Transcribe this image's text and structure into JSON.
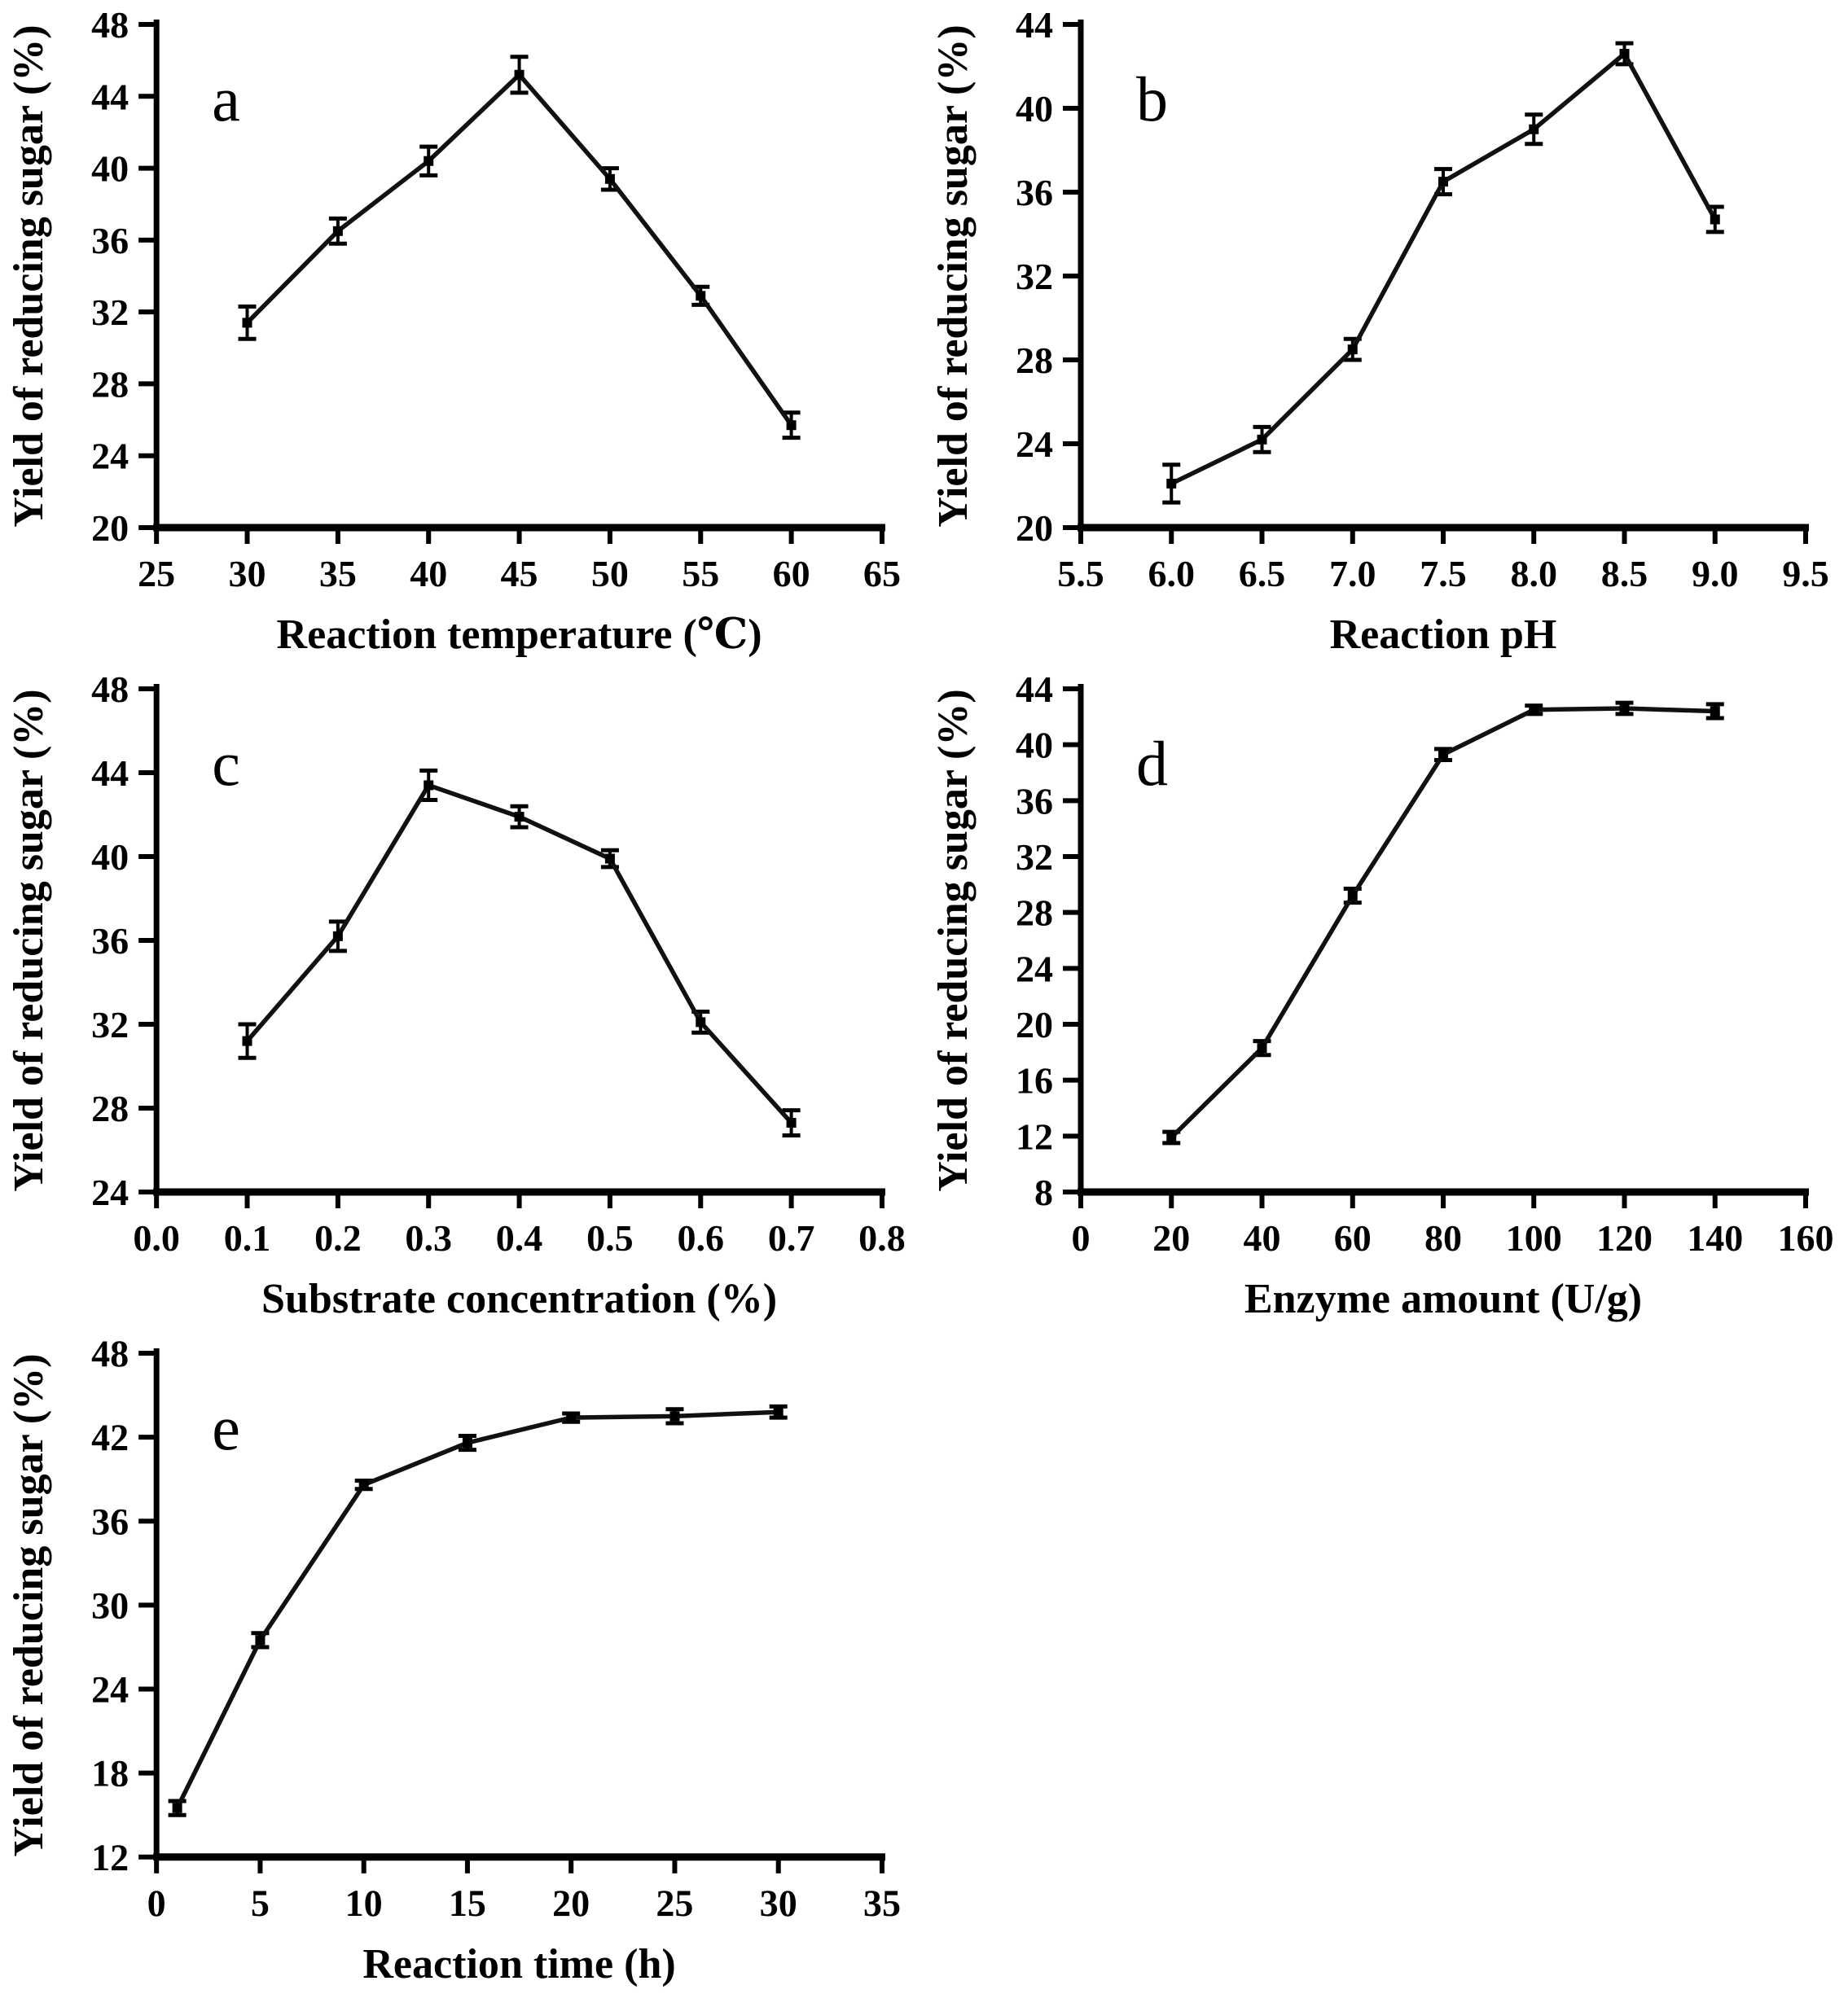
{
  "figure": {
    "background": "#ffffff",
    "ink_color": "#000000",
    "line_color": "#111111",
    "layout": "five line chart panels in a 2-column grid, panel e bottom-left, bottom-right cell empty"
  },
  "chart_data": [
    {
      "type": "line",
      "panel_letter": "a",
      "xlabel": "Reaction temperature (℃)",
      "ylabel": "Yield of reducing sugar (%)",
      "x": [
        30,
        35,
        40,
        45,
        50,
        55,
        60
      ],
      "y": [
        31.4,
        36.5,
        40.4,
        45.2,
        39.4,
        32.9,
        25.7
      ],
      "yerr": [
        0.9,
        0.7,
        0.8,
        1.0,
        0.6,
        0.5,
        0.7
      ],
      "xlim": [
        25,
        65
      ],
      "ylim": [
        20,
        48
      ],
      "xticks": [
        25,
        30,
        35,
        40,
        45,
        50,
        55,
        60,
        65
      ],
      "xtick_labels": [
        "25",
        "30",
        "35",
        "40",
        "45",
        "50",
        "55",
        "60",
        "65"
      ],
      "yticks": [
        20,
        24,
        28,
        32,
        36,
        40,
        44,
        48
      ],
      "ytick_labels": [
        "20",
        "24",
        "28",
        "32",
        "36",
        "40",
        "44",
        "48"
      ],
      "marker": "square",
      "error_bars": true,
      "grid": false,
      "legend": null
    },
    {
      "type": "line",
      "panel_letter": "b",
      "xlabel": "Reaction pH",
      "ylabel": "Yield of reducing sugar (%)",
      "x": [
        6.0,
        6.5,
        7.0,
        7.5,
        8.0,
        8.5,
        9.0
      ],
      "y": [
        22.1,
        24.2,
        28.5,
        36.5,
        39.0,
        42.6,
        34.7
      ],
      "yerr": [
        0.9,
        0.6,
        0.5,
        0.6,
        0.7,
        0.5,
        0.6
      ],
      "xlim": [
        5.5,
        9.5
      ],
      "ylim": [
        20,
        44
      ],
      "xticks": [
        5.5,
        6.0,
        6.5,
        7.0,
        7.5,
        8.0,
        8.5,
        9.0,
        9.5
      ],
      "xtick_labels": [
        "5.5",
        "6.0",
        "6.5",
        "7.0",
        "7.5",
        "8.0",
        "8.5",
        "9.0",
        "9.5"
      ],
      "yticks": [
        20,
        24,
        28,
        32,
        36,
        40,
        44
      ],
      "ytick_labels": [
        "20",
        "24",
        "28",
        "32",
        "36",
        "40",
        "44"
      ],
      "marker": "square",
      "error_bars": true,
      "grid": false,
      "legend": null
    },
    {
      "type": "line",
      "panel_letter": "c",
      "xlabel": "Substrate concentration (%)",
      "ylabel": "Yield of reducing sugar (%)",
      "x": [
        0.1,
        0.2,
        0.3,
        0.4,
        0.5,
        0.6,
        0.7
      ],
      "y": [
        31.2,
        36.2,
        43.4,
        41.9,
        39.9,
        32.1,
        27.3
      ],
      "yerr": [
        0.8,
        0.7,
        0.7,
        0.5,
        0.4,
        0.5,
        0.6
      ],
      "xlim": [
        0.0,
        0.8
      ],
      "ylim": [
        24,
        48
      ],
      "xticks": [
        0.0,
        0.1,
        0.2,
        0.3,
        0.4,
        0.5,
        0.6,
        0.7,
        0.8
      ],
      "xtick_labels": [
        "0.0",
        "0.1",
        "0.2",
        "0.3",
        "0.4",
        "0.5",
        "0.6",
        "0.7",
        "0.8"
      ],
      "yticks": [
        24,
        28,
        32,
        36,
        40,
        44,
        48
      ],
      "ytick_labels": [
        "24",
        "28",
        "32",
        "36",
        "40",
        "44",
        "48"
      ],
      "marker": "square",
      "error_bars": true,
      "grid": false,
      "legend": null
    },
    {
      "type": "line",
      "panel_letter": "d",
      "xlabel": "Enzyme amount (U/g)",
      "ylabel": "Yield of reducing sugar (%)",
      "x": [
        20,
        40,
        60,
        80,
        100,
        120,
        140
      ],
      "y": [
        11.9,
        18.3,
        29.2,
        39.3,
        42.5,
        42.6,
        42.4
      ],
      "yerr": [
        0.4,
        0.5,
        0.5,
        0.4,
        0.3,
        0.4,
        0.5
      ],
      "xlim": [
        0,
        160
      ],
      "ylim": [
        8,
        44
      ],
      "xticks": [
        0,
        20,
        40,
        60,
        80,
        100,
        120,
        140,
        160
      ],
      "xtick_labels": [
        "0",
        "20",
        "40",
        "60",
        "80",
        "100",
        "120",
        "140",
        "160"
      ],
      "yticks": [
        8,
        12,
        16,
        20,
        24,
        28,
        32,
        36,
        40,
        44
      ],
      "ytick_labels": [
        "8",
        "12",
        "16",
        "20",
        "24",
        "28",
        "32",
        "36",
        "40",
        "44"
      ],
      "marker": "square",
      "error_bars": true,
      "grid": false,
      "legend": null
    },
    {
      "type": "line",
      "panel_letter": "e",
      "xlabel": "Reaction time (h)",
      "ylabel": "Yield of reducing sugar (%)",
      "x": [
        1,
        5,
        10,
        15,
        20,
        25,
        30
      ],
      "y": [
        15.5,
        27.5,
        38.6,
        41.6,
        43.4,
        43.5,
        43.8
      ],
      "yerr": [
        0.5,
        0.5,
        0.3,
        0.5,
        0.3,
        0.5,
        0.4
      ],
      "xlim": [
        0,
        35
      ],
      "ylim": [
        12,
        48
      ],
      "xticks": [
        0,
        5,
        10,
        15,
        20,
        25,
        30,
        35
      ],
      "xtick_labels": [
        "0",
        "5",
        "10",
        "15",
        "20",
        "25",
        "30",
        "35"
      ],
      "yticks": [
        12,
        18,
        24,
        30,
        36,
        42,
        48
      ],
      "ytick_labels": [
        "12",
        "18",
        "24",
        "30",
        "36",
        "42",
        "48"
      ],
      "marker": "square",
      "error_bars": true,
      "grid": false,
      "legend": null
    }
  ]
}
